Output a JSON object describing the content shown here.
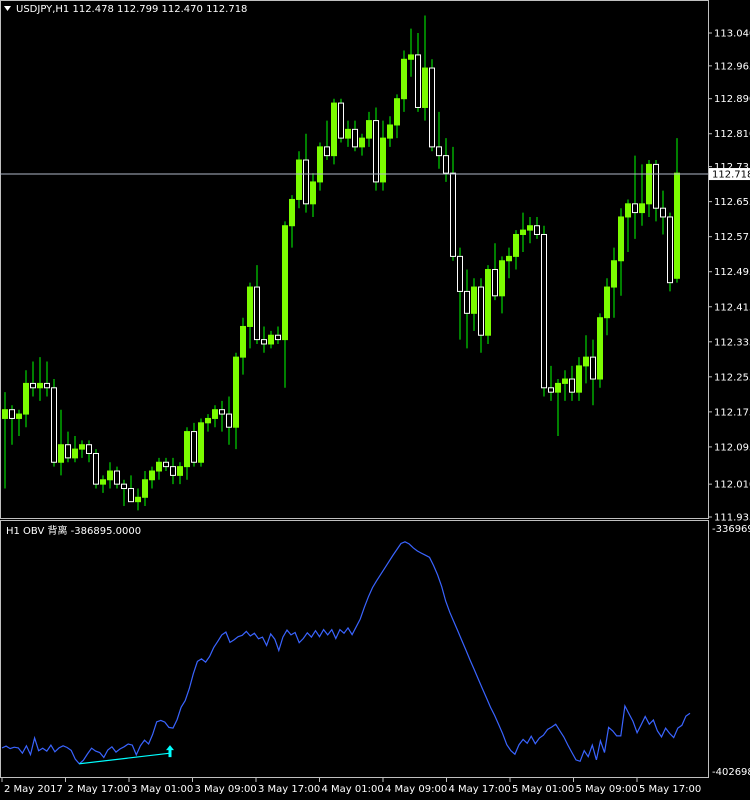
{
  "header": {
    "symbol_line": "USDJPY,H1  112.478 112.799 112.470 112.718",
    "indicator_line": "H1 OBV 背离  -386895.0000"
  },
  "colors": {
    "background": "#000000",
    "candle_up": "#7CFC00",
    "candle_down_body": "#ffffff",
    "wick": "#00ff00",
    "obv_line": "#3a64ff",
    "divergence": "#00ffff",
    "current_price_line": "#b0b8c8",
    "frame": "#c0c0c0"
  },
  "chart_data": [
    {
      "type": "candlestick",
      "symbol": "USDJPY",
      "timeframe": "H1",
      "ylim": [
        111.935,
        113.07
      ],
      "price_ticks": [
        "113.040",
        "112.965",
        "112.890",
        "112.810",
        "112.735",
        "112.655",
        "112.575",
        "112.495",
        "112.415",
        "112.335",
        "112.255",
        "112.175",
        "112.095",
        "112.010",
        "111.935"
      ],
      "current_price": "112.718",
      "candles": [
        [
          112.16,
          112.22,
          112.0,
          112.18
        ],
        [
          112.18,
          112.19,
          112.1,
          112.16
        ],
        [
          112.16,
          112.18,
          112.12,
          112.17
        ],
        [
          112.17,
          112.27,
          112.14,
          112.24
        ],
        [
          112.24,
          112.29,
          112.21,
          112.23
        ],
        [
          112.23,
          112.3,
          112.2,
          112.24
        ],
        [
          112.24,
          112.29,
          112.21,
          112.23
        ],
        [
          112.23,
          112.25,
          112.05,
          112.06
        ],
        [
          112.06,
          112.18,
          112.03,
          112.1
        ],
        [
          112.1,
          112.13,
          112.06,
          112.07
        ],
        [
          112.07,
          112.12,
          112.06,
          112.09
        ],
        [
          112.09,
          112.11,
          112.07,
          112.1
        ],
        [
          112.1,
          112.11,
          112.06,
          112.08
        ],
        [
          112.08,
          112.09,
          112.0,
          112.01
        ],
        [
          112.01,
          112.03,
          111.99,
          112.02
        ],
        [
          112.02,
          112.06,
          112.0,
          112.04
        ],
        [
          112.04,
          112.05,
          112.0,
          112.01
        ],
        [
          112.01,
          112.02,
          111.96,
          112.0
        ],
        [
          112.0,
          112.03,
          111.97,
          111.97
        ],
        [
          111.97,
          112.0,
          111.95,
          111.98
        ],
        [
          111.98,
          112.04,
          111.96,
          112.02
        ],
        [
          112.02,
          112.05,
          112.0,
          112.04
        ],
        [
          112.04,
          112.07,
          112.02,
          112.06
        ],
        [
          112.06,
          112.07,
          112.04,
          112.05
        ],
        [
          112.05,
          112.07,
          112.01,
          112.03
        ],
        [
          112.03,
          112.06,
          112.01,
          112.05
        ],
        [
          112.05,
          112.14,
          112.02,
          112.13
        ],
        [
          112.13,
          112.15,
          112.05,
          112.06
        ],
        [
          112.06,
          112.16,
          112.05,
          112.15
        ],
        [
          112.15,
          112.17,
          112.13,
          112.16
        ],
        [
          112.16,
          112.19,
          112.14,
          112.18
        ],
        [
          112.18,
          112.2,
          112.13,
          112.17
        ],
        [
          112.17,
          112.21,
          112.1,
          112.14
        ],
        [
          112.14,
          112.31,
          112.09,
          112.3
        ],
        [
          112.3,
          112.39,
          112.26,
          112.37
        ],
        [
          112.37,
          112.47,
          112.32,
          112.46
        ],
        [
          112.46,
          112.51,
          112.33,
          112.34
        ],
        [
          112.34,
          112.37,
          112.31,
          112.33
        ],
        [
          112.33,
          112.36,
          112.32,
          112.35
        ],
        [
          112.35,
          112.37,
          112.33,
          112.34
        ],
        [
          112.34,
          112.61,
          112.23,
          112.6
        ],
        [
          112.6,
          112.67,
          112.55,
          112.66
        ],
        [
          112.66,
          112.77,
          112.64,
          112.75
        ],
        [
          112.75,
          112.81,
          112.63,
          112.65
        ],
        [
          112.65,
          112.72,
          112.62,
          112.7
        ],
        [
          112.7,
          112.79,
          112.68,
          112.78
        ],
        [
          112.78,
          112.84,
          112.75,
          112.76
        ],
        [
          112.76,
          112.89,
          112.74,
          112.88
        ],
        [
          112.88,
          112.89,
          112.79,
          112.8
        ],
        [
          112.8,
          112.84,
          112.78,
          112.82
        ],
        [
          112.82,
          112.84,
          112.77,
          112.78
        ],
        [
          112.78,
          112.81,
          112.76,
          112.8
        ],
        [
          112.8,
          112.86,
          112.78,
          112.84
        ],
        [
          112.84,
          112.87,
          112.68,
          112.7
        ],
        [
          112.7,
          112.84,
          112.68,
          112.8
        ],
        [
          112.8,
          112.85,
          112.78,
          112.83
        ],
        [
          112.83,
          112.9,
          112.8,
          112.89
        ],
        [
          112.89,
          113.0,
          112.86,
          112.98
        ],
        [
          112.98,
          113.05,
          112.94,
          112.99
        ],
        [
          112.99,
          113.04,
          112.86,
          112.87
        ],
        [
          112.87,
          113.08,
          112.84,
          112.96
        ],
        [
          112.96,
          112.98,
          112.77,
          112.78
        ],
        [
          112.78,
          112.86,
          112.73,
          112.76
        ],
        [
          112.76,
          112.8,
          112.7,
          112.72
        ],
        [
          112.72,
          112.78,
          112.52,
          112.53
        ],
        [
          112.53,
          112.55,
          112.34,
          112.45
        ],
        [
          112.45,
          112.5,
          112.32,
          112.4
        ],
        [
          112.4,
          112.48,
          112.36,
          112.46
        ],
        [
          112.46,
          112.48,
          112.31,
          112.35
        ],
        [
          112.35,
          112.51,
          112.33,
          112.5
        ],
        [
          112.5,
          112.56,
          112.43,
          112.44
        ],
        [
          112.44,
          112.53,
          112.4,
          112.52
        ],
        [
          112.52,
          112.55,
          112.48,
          112.53
        ],
        [
          112.53,
          112.59,
          112.5,
          112.58
        ],
        [
          112.58,
          112.63,
          112.54,
          112.59
        ],
        [
          112.59,
          112.62,
          112.56,
          112.6
        ],
        [
          112.6,
          112.62,
          112.57,
          112.58
        ],
        [
          112.58,
          112.6,
          112.21,
          112.23
        ],
        [
          112.23,
          112.28,
          112.2,
          112.22
        ],
        [
          112.22,
          112.25,
          112.12,
          112.24
        ],
        [
          112.24,
          112.27,
          112.2,
          112.25
        ],
        [
          112.25,
          112.28,
          112.2,
          112.22
        ],
        [
          112.22,
          112.3,
          112.2,
          112.28
        ],
        [
          112.28,
          112.35,
          112.24,
          112.3
        ],
        [
          112.3,
          112.34,
          112.19,
          112.25
        ],
        [
          112.25,
          112.4,
          112.23,
          112.39
        ],
        [
          112.39,
          112.48,
          112.35,
          112.46
        ],
        [
          112.46,
          112.55,
          112.39,
          112.52
        ],
        [
          112.52,
          112.64,
          112.44,
          112.62
        ],
        [
          112.62,
          112.66,
          112.54,
          112.65
        ],
        [
          112.65,
          112.76,
          112.57,
          112.63
        ],
        [
          112.63,
          112.74,
          112.6,
          112.65
        ],
        [
          112.65,
          112.75,
          112.62,
          112.74
        ],
        [
          112.74,
          112.75,
          112.61,
          112.64
        ],
        [
          112.64,
          112.68,
          112.58,
          112.62
        ],
        [
          112.62,
          112.63,
          112.45,
          112.47
        ],
        [
          112.48,
          112.8,
          112.47,
          112.72
        ]
      ]
    },
    {
      "type": "line",
      "name": "OBV",
      "ylim": [
        -402698.7,
        -336969.3
      ],
      "value_ticks": [
        "-336969.3",
        "-402698.7"
      ],
      "current_value": "-386895.0000",
      "obv_y": [
        -397000,
        -396500,
        -397200,
        -396800,
        -397000,
        -398500,
        -396400,
        -398900,
        -394200,
        -397800,
        -397100,
        -397900,
        -396200,
        -398100,
        -397000,
        -396400,
        -396900,
        -397700,
        -400200,
        -401500,
        -400500,
        -398700,
        -397100,
        -397900,
        -398300,
        -399700,
        -397600,
        -396700,
        -398200,
        -397300,
        -396700,
        -395900,
        -396200,
        -399000,
        -396400,
        -394800,
        -395900,
        -393200,
        -389600,
        -389200,
        -389700,
        -391200,
        -391400,
        -389000,
        -385500,
        -383600,
        -380200,
        -376000,
        -372500,
        -371800,
        -372700,
        -371100,
        -368600,
        -366800,
        -365000,
        -364200,
        -367100,
        -366400,
        -365500,
        -365100,
        -364000,
        -365300,
        -364500,
        -366100,
        -365600,
        -368000,
        -364700,
        -366200,
        -369400,
        -365600,
        -363600,
        -365000,
        -364300,
        -367200,
        -366000,
        -364400,
        -365600,
        -363800,
        -365500,
        -363500,
        -365000,
        -363500,
        -366000,
        -363500,
        -364500,
        -363000,
        -364900,
        -362700,
        -360500,
        -357200,
        -354200,
        -351600,
        -349700,
        -347900,
        -346100,
        -344300,
        -342500,
        -340800,
        -339100,
        -338600,
        -339200,
        -340300,
        -341200,
        -341800,
        -342400,
        -343000,
        -345300,
        -348000,
        -351300,
        -355400,
        -358600,
        -361300,
        -364000,
        -366700,
        -369400,
        -372200,
        -374800,
        -377500,
        -380200,
        -382800,
        -385500,
        -387800,
        -390400,
        -393000,
        -396100,
        -397800,
        -398800,
        -396100,
        -394600,
        -395700,
        -393700,
        -395800,
        -394200,
        -393400,
        -391800,
        -391100,
        -390300,
        -392100,
        -393900,
        -396200,
        -398300,
        -400400,
        -400800,
        -397800,
        -399500,
        -396200,
        -400400,
        -395000,
        -398300,
        -391200,
        -392200,
        -393600,
        -393600,
        -385100,
        -387300,
        -389500,
        -392700,
        -390500,
        -388100,
        -390300,
        -389100,
        -392200,
        -393900,
        -391400,
        -392900,
        -394100,
        -391400,
        -390600,
        -388000,
        -387200
      ],
      "divergence_marker": "arrow-up-icon"
    }
  ],
  "time_axis": {
    "labels": [
      "2 May 2017",
      "2 May 17:00",
      "3 May 01:00",
      "3 May 09:00",
      "3 May 17:00",
      "4 May 01:00",
      "4 May 09:00",
      "4 May 17:00",
      "5 May 01:00",
      "5 May 09:00",
      "5 May 17:00"
    ]
  }
}
